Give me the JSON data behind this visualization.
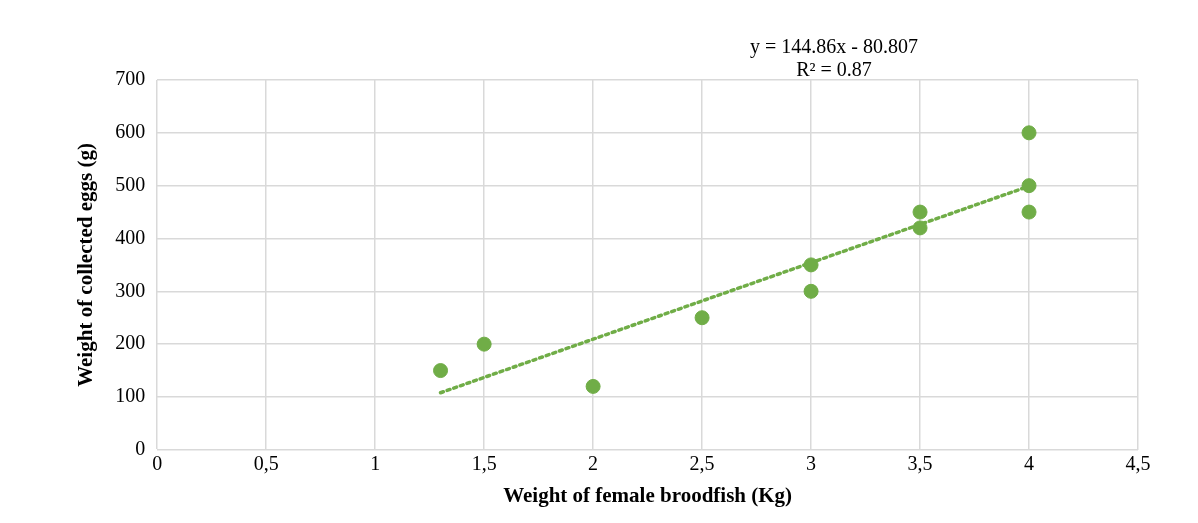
{
  "chart_data": {
    "type": "scatter",
    "xlabel": "Weight of female broodfish (Kg)",
    "ylabel": "Weight of collected eggs (g)",
    "xlim": [
      0,
      4.5
    ],
    "xticks": [
      0,
      {
        "value": 0.5,
        "label": "0,5"
      },
      1,
      {
        "value": 1.5,
        "label": "1,5"
      },
      2,
      {
        "value": 2.5,
        "label": "2,5"
      },
      3,
      {
        "value": 3.5,
        "label": "3,5"
      },
      4,
      {
        "value": 4.5,
        "label": "4,5"
      }
    ],
    "ylim": [
      0,
      700
    ],
    "yticks": [
      0,
      100,
      200,
      300,
      400,
      500,
      600,
      700
    ],
    "grid": true,
    "legend": false,
    "marker": "circle",
    "annotations": [
      "y = 144.86x - 80.807",
      "R² = 0.87"
    ],
    "series": [
      {
        "color": "#70ad47",
        "x": [
          1.3,
          1.5,
          2,
          2.5,
          3,
          3,
          3.5,
          3.5,
          4,
          4,
          4
        ],
        "values": [
          150,
          200,
          120,
          250,
          350,
          300,
          450,
          420,
          600,
          500,
          450
        ]
      },
      {
        "type": "line",
        "color": "#70ad47",
        "line_style": "dotted",
        "marker": "none",
        "x": [
          1.3,
          4
        ],
        "values": [
          108,
          499
        ]
      }
    ]
  }
}
